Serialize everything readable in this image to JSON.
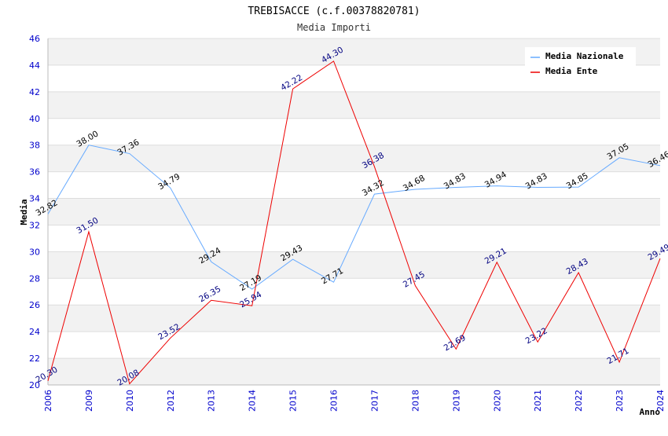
{
  "chart_data": {
    "type": "line",
    "title": "TREBISACCE (c.f.00378820781)",
    "subtitle": "Media Importi",
    "xlabel": "Anno",
    "ylabel": "Media",
    "ylim": [
      20,
      46
    ],
    "ytick_step": 2,
    "grid": true,
    "legend_position": "top-right",
    "categories": [
      "2006",
      "2009",
      "2010",
      "2012",
      "2013",
      "2014",
      "2015",
      "2016",
      "2017",
      "2018",
      "2019",
      "2020",
      "2021",
      "2022",
      "2023",
      "2024"
    ],
    "series": [
      {
        "name": "Media Nazionale",
        "color": "#66aaff",
        "label_color": "#000000",
        "values": [
          32.82,
          38.0,
          37.36,
          34.79,
          29.24,
          27.19,
          29.43,
          27.71,
          34.32,
          34.68,
          34.83,
          34.94,
          34.83,
          34.85,
          37.05,
          36.46
        ],
        "labels": [
          "32.82",
          "38.00",
          "37.36",
          "34.79",
          "29.24",
          "27.19",
          "29.43",
          "27.71",
          "34.32",
          "34.68",
          "34.83",
          "34.94",
          "34.83",
          "34.85",
          "37.05",
          "36.46"
        ]
      },
      {
        "name": "Media Ente",
        "color": "#ee0000",
        "label_color": "#000080",
        "values": [
          20.3,
          31.5,
          20.08,
          23.52,
          26.35,
          25.94,
          42.22,
          44.3,
          36.38,
          27.45,
          22.69,
          29.21,
          23.22,
          28.43,
          21.71,
          29.49
        ],
        "labels": [
          "20.30",
          "31.50",
          "20.08",
          "23.52",
          "26.35",
          "25.94",
          "42.22",
          "44.30",
          "36.38",
          "27.45",
          "22.69",
          "29.21",
          "23.22",
          "28.43",
          "21.71",
          "29.49"
        ]
      }
    ],
    "colors": {
      "axis_tick": "#0000cc",
      "grid_band": "#f2f2f2",
      "grid_line": "#dddddd",
      "axis_line": "#bbbbbb"
    }
  }
}
